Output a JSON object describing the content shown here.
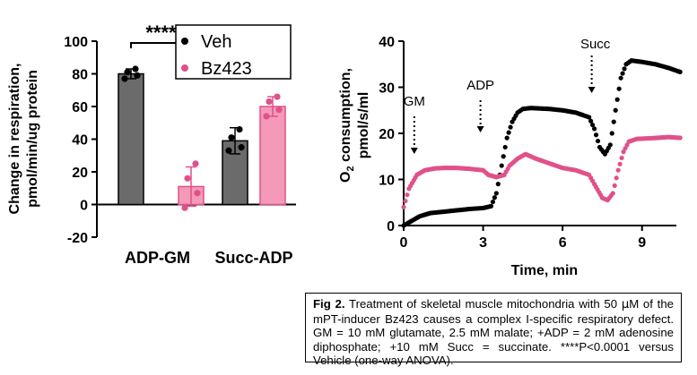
{
  "chart_data": [
    {
      "type": "bar",
      "ylabel_line1": "Change in respiration,",
      "ylabel_line2": "pmol/min/ug protein",
      "ylim": [
        -20,
        100
      ],
      "yticks": [
        -20,
        0,
        20,
        40,
        60,
        80,
        100
      ],
      "categories": [
        "ADP-GM",
        "Succ-ADP"
      ],
      "series": [
        {
          "name": "Veh",
          "color": "#6b6b6b",
          "values": [
            80,
            39
          ],
          "error": [
            3,
            8
          ],
          "points": [
            [
              77,
              79,
              81,
              83
            ],
            [
              33,
              35,
              41,
              46
            ]
          ]
        },
        {
          "name": "Bz423",
          "color": "#f49ab8",
          "values": [
            11,
            60
          ],
          "error": [
            12,
            6
          ],
          "points": [
            [
              -2,
              7,
              16,
              25
            ],
            [
              54,
              58,
              63,
              66
            ]
          ]
        }
      ],
      "legend_position": "top-right",
      "significance": "****"
    },
    {
      "type": "line",
      "ylabel_sub": "2",
      "ylabel_pre": "O",
      "ylabel_rest": " consumption,",
      "ylabel_line2": "pmol/s/ml",
      "xlabel": "Time, min",
      "xlim": [
        0,
        10.5
      ],
      "ylim": [
        0,
        40
      ],
      "xticks": [
        0,
        3,
        6,
        9
      ],
      "yticks": [
        0,
        10,
        20,
        30,
        40
      ],
      "annotations": [
        {
          "text": "GM",
          "x": 0.4
        },
        {
          "text": "ADP",
          "x": 2.9
        },
        {
          "text": "Succ",
          "x": 7.1
        }
      ],
      "series": [
        {
          "name": "Veh",
          "color": "#000000",
          "x": [
            0,
            0.3,
            0.6,
            1,
            1.5,
            2,
            2.5,
            3,
            3.3,
            3.5,
            3.7,
            3.9,
            4.1,
            4.3,
            4.5,
            4.8,
            5.5,
            6,
            6.5,
            7,
            7.2,
            7.4,
            7.6,
            7.8,
            8,
            8.2,
            8.4,
            8.6,
            9,
            9.5,
            10,
            10.5
          ],
          "y": [
            0,
            1,
            2,
            2.7,
            3,
            3.3,
            3.6,
            3.8,
            4.2,
            7,
            13,
            19,
            22.5,
            24.5,
            25.3,
            25.5,
            25.3,
            25,
            24.5,
            23.5,
            21,
            17,
            15.5,
            17.5,
            25,
            32,
            35,
            35.8,
            35.5,
            35,
            34.2,
            33.2
          ]
        },
        {
          "name": "Bz423",
          "color": "#e0518a",
          "x": [
            0,
            0.2,
            0.5,
            0.8,
            1.2,
            1.5,
            2,
            2.5,
            3,
            3.2,
            3.5,
            3.8,
            4,
            4.3,
            4.6,
            5,
            5.5,
            6,
            6.5,
            7,
            7.2,
            7.5,
            7.7,
            7.9,
            8.1,
            8.3,
            8.5,
            8.8,
            9.5,
            10,
            10.5
          ],
          "y": [
            4,
            8,
            11,
            12,
            12.4,
            12.5,
            12.5,
            12.3,
            12,
            11,
            10.5,
            11,
            13,
            14.5,
            15.5,
            14.5,
            13.5,
            12.5,
            12,
            11,
            9,
            6,
            5.5,
            7,
            12,
            16,
            18.2,
            18.8,
            19,
            19.2,
            19
          ]
        }
      ]
    }
  ],
  "caption": {
    "lead": "Fig 2.",
    "line1_a": " Treatment of skeletal muscle mitochondria with 50 ",
    "mu": "μ",
    "line1_b": "M of the mPT-inducer Bz423 causes",
    "rest": "a complex I-specific respiratory defect. GM = 10 mM glutamate, 2.5 mM malate; +ADP = 2 mM adenosine diphosphate; +10 mM Succ = succinate. ****P<0.0001 versus Vehicle (one-way ANOVA)."
  }
}
